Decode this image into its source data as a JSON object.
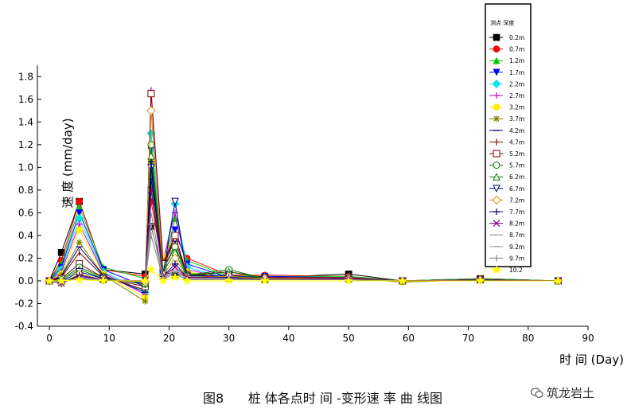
{
  "chart_data": {
    "type": "line",
    "ylabel": "速 度 (mm/day)",
    "xlabel": "时 间 (Day)",
    "xlim": [
      -2,
      90
    ],
    "ylim": [
      -0.4,
      1.9
    ],
    "xticks": [
      0,
      10,
      20,
      30,
      40,
      50,
      60,
      70,
      80,
      90
    ],
    "yticks": [
      -0.4,
      -0.2,
      0.0,
      0.2,
      0.4,
      0.6,
      0.8,
      1.0,
      1.2,
      1.4,
      1.6,
      1.8
    ],
    "ytick_labels": [
      "-0.4",
      "-0.2",
      "0.0",
      "0.2",
      "0.4",
      "0.6",
      "0.8",
      "1.0",
      "1.2",
      "1.4",
      "1.6",
      "1.8"
    ],
    "grid": false,
    "legend": {
      "title": "测点 深度",
      "position": "top-right"
    },
    "x": [
      0,
      2,
      5,
      9,
      16,
      17,
      19,
      21,
      23,
      30,
      36,
      50,
      59,
      72,
      85
    ],
    "series": [
      {
        "name": "0.2m",
        "color": "#000000",
        "marker": "square-filled",
        "values": [
          0.0,
          0.25,
          0.7,
          0.1,
          0.06,
          0.48,
          0.08,
          0.05,
          0.05,
          0.04,
          0.03,
          0.06,
          0.0,
          0.02,
          0.0
        ]
      },
      {
        "name": "0.7m",
        "color": "#ff0000",
        "marker": "circle-filled",
        "values": [
          0.0,
          0.18,
          0.7,
          0.1,
          0.04,
          0.7,
          0.1,
          0.4,
          0.2,
          0.05,
          0.05,
          0.04,
          0.0,
          0.02,
          0.0
        ]
      },
      {
        "name": "1.2m",
        "color": "#00cc00",
        "marker": "triangle-up-filled",
        "values": [
          0.0,
          0.15,
          0.65,
          0.12,
          0.02,
          0.85,
          0.1,
          0.55,
          0.18,
          0.04,
          0.04,
          0.04,
          0.0,
          0.02,
          0.0
        ]
      },
      {
        "name": "1.7m",
        "color": "#0000ff",
        "marker": "triangle-down-filled",
        "values": [
          0.0,
          0.12,
          0.6,
          0.1,
          -0.05,
          1.15,
          0.12,
          0.45,
          0.15,
          0.03,
          0.04,
          0.03,
          0.0,
          0.01,
          0.0
        ]
      },
      {
        "name": "2.2m",
        "color": "#00e5ee",
        "marker": "diamond-filled",
        "values": [
          0.0,
          0.1,
          0.55,
          0.08,
          -0.1,
          1.3,
          0.15,
          0.68,
          0.12,
          0.02,
          0.03,
          0.03,
          0.0,
          0.01,
          0.0
        ]
      },
      {
        "name": "2.7m",
        "color": "#cc00cc",
        "marker": "plus",
        "values": [
          0.0,
          0.08,
          0.5,
          0.07,
          -0.12,
          1.68,
          0.18,
          0.6,
          0.1,
          0.02,
          0.03,
          0.03,
          -0.01,
          0.01,
          0.0
        ]
      },
      {
        "name": "3.2m",
        "color": "#ffee00",
        "marker": "circle-filled",
        "values": [
          0.0,
          0.06,
          0.45,
          0.06,
          -0.15,
          1.05,
          0.2,
          0.4,
          0.08,
          0.02,
          0.02,
          0.02,
          -0.01,
          0.01,
          0.0
        ]
      },
      {
        "name": "3.7m",
        "color": "#808000",
        "marker": "asterisk",
        "values": [
          0.0,
          0.05,
          0.34,
          0.05,
          -0.18,
          0.95,
          0.18,
          0.3,
          0.07,
          0.02,
          0.02,
          0.02,
          -0.01,
          0.01,
          0.0
        ]
      },
      {
        "name": "4.2m",
        "color": "#000080",
        "marker": "dash",
        "values": [
          0.0,
          0.04,
          0.3,
          0.05,
          -0.1,
          0.9,
          0.15,
          0.35,
          0.06,
          0.03,
          0.02,
          0.02,
          0.0,
          0.01,
          0.0
        ]
      },
      {
        "name": "4.7m",
        "color": "#800000",
        "marker": "vbar",
        "values": [
          0.0,
          0.03,
          0.25,
          0.04,
          -0.08,
          0.8,
          0.12,
          0.3,
          0.05,
          0.03,
          0.02,
          0.02,
          0.0,
          0.01,
          0.0
        ]
      },
      {
        "name": "5.2m",
        "color": "#800000",
        "marker": "square-open",
        "values": [
          0.0,
          0.02,
          0.15,
          0.03,
          -0.05,
          1.65,
          0.15,
          0.4,
          0.05,
          0.08,
          0.03,
          0.03,
          0.0,
          0.01,
          0.0
        ]
      },
      {
        "name": "5.7m",
        "color": "#008000",
        "marker": "circle-open",
        "values": [
          0.0,
          0.01,
          0.12,
          0.03,
          -0.03,
          1.2,
          0.1,
          0.3,
          0.05,
          0.1,
          0.02,
          0.02,
          0.0,
          0.01,
          0.0
        ]
      },
      {
        "name": "6.2m",
        "color": "#008000",
        "marker": "triangle-up-open",
        "values": [
          0.0,
          0.0,
          0.1,
          0.02,
          -0.02,
          1.1,
          0.08,
          0.25,
          0.04,
          0.08,
          0.02,
          0.02,
          0.0,
          0.01,
          0.0
        ]
      },
      {
        "name": "6.7m",
        "color": "#000080",
        "marker": "triangle-down-open",
        "values": [
          0.0,
          -0.01,
          0.08,
          0.02,
          -0.02,
          1.0,
          0.06,
          0.7,
          0.04,
          0.05,
          0.02,
          0.02,
          0.0,
          0.01,
          0.0
        ]
      },
      {
        "name": "7.2m",
        "color": "#cc9900",
        "marker": "diamond-open",
        "values": [
          0.0,
          -0.02,
          0.06,
          0.01,
          -0.01,
          1.5,
          0.05,
          0.2,
          0.03,
          0.04,
          0.02,
          0.02,
          0.0,
          0.01,
          0.0
        ]
      },
      {
        "name": "7.7m",
        "color": "#000080",
        "marker": "plus",
        "values": [
          0.0,
          -0.02,
          0.05,
          0.01,
          0.0,
          1.05,
          0.04,
          0.15,
          0.03,
          0.03,
          0.01,
          0.02,
          0.0,
          0.01,
          0.0
        ]
      },
      {
        "name": "8.2m",
        "color": "#800080",
        "marker": "x",
        "values": [
          0.0,
          -0.02,
          0.04,
          0.01,
          0.0,
          0.8,
          0.04,
          0.12,
          0.03,
          0.02,
          0.01,
          0.02,
          0.0,
          0.01,
          0.0
        ]
      },
      {
        "name": "8.7m",
        "color": "#808080",
        "marker": "none",
        "values": [
          0.0,
          -0.01,
          0.03,
          0.01,
          0.0,
          0.6,
          0.03,
          0.1,
          0.02,
          0.02,
          0.01,
          0.01,
          0.0,
          0.0,
          0.0
        ]
      },
      {
        "name": "9.2m",
        "color": "#a0a0a0",
        "marker": "dash",
        "values": [
          0.0,
          -0.01,
          0.02,
          0.0,
          0.0,
          0.5,
          0.02,
          0.08,
          0.02,
          0.02,
          0.01,
          0.01,
          0.0,
          0.0,
          0.0
        ]
      },
      {
        "name": "9.7m",
        "color": "#808080",
        "marker": "vbar",
        "values": [
          0.0,
          -0.01,
          0.02,
          0.0,
          0.0,
          0.4,
          0.02,
          0.06,
          0.01,
          0.01,
          0.01,
          0.01,
          0.0,
          0.0,
          0.0
        ]
      },
      {
        "name": "10.2",
        "color": "#ffff00",
        "marker": "star-filled",
        "values": [
          0.0,
          0.0,
          0.01,
          0.0,
          0.0,
          0.1,
          0.0,
          0.03,
          0.0,
          0.0,
          0.0,
          0.0,
          0.0,
          0.0,
          0.0
        ]
      }
    ]
  },
  "caption": "图8      桩 体各点时 间 -变形速 率 曲 线图",
  "watermark": {
    "text": "筑龙岩土",
    "icon": "wechat-icon"
  }
}
